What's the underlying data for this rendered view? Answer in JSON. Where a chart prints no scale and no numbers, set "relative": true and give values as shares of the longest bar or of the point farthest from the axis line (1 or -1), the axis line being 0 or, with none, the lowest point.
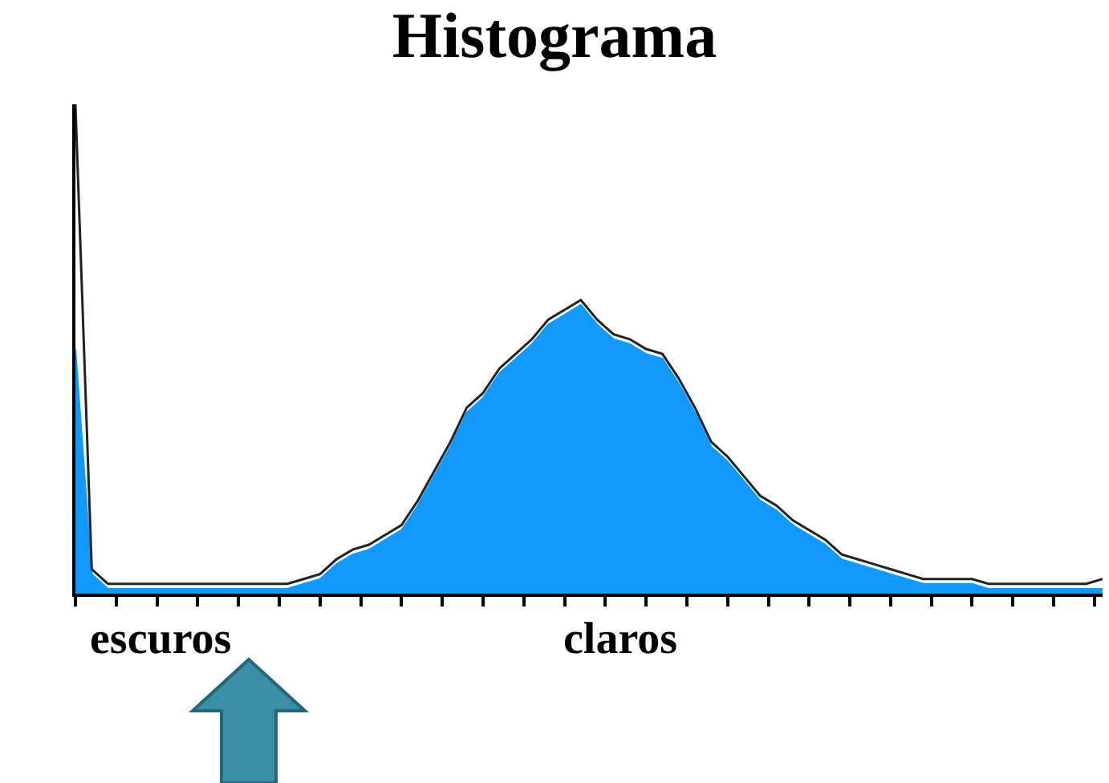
{
  "chart_data": {
    "type": "area",
    "title": "Histograma",
    "relative": true,
    "categories": [
      null,
      null,
      null,
      null,
      null,
      null,
      null,
      null,
      null,
      null,
      null,
      null,
      null,
      null,
      null,
      null,
      null,
      null,
      null,
      null,
      null,
      null,
      null,
      null,
      null,
      null,
      null,
      null,
      null,
      null,
      null,
      null,
      null,
      null,
      null,
      null,
      null,
      null,
      null,
      null,
      null,
      null,
      null,
      null,
      null,
      null,
      null,
      null,
      null,
      null,
      null,
      null,
      null,
      null,
      null,
      null,
      null,
      null,
      null,
      null,
      null,
      null,
      null,
      null
    ],
    "series": [
      {
        "color": "#1299fa",
        "values": [
          0.5,
          0.04,
          0.01,
          0.01,
          0.01,
          0.01,
          0.01,
          0.01,
          0.01,
          0.01,
          0.01,
          0.01,
          0.01,
          0.01,
          0.02,
          0.03,
          0.06,
          0.08,
          0.09,
          0.11,
          0.13,
          0.18,
          0.24,
          0.3,
          0.37,
          0.4,
          0.45,
          0.48,
          0.51,
          0.55,
          0.57,
          0.59,
          0.55,
          0.52,
          0.51,
          0.49,
          0.48,
          0.43,
          0.37,
          0.3,
          0.27,
          0.23,
          0.19,
          0.17,
          0.14,
          0.12,
          0.1,
          0.07,
          0.06,
          0.05,
          0.04,
          0.03,
          0.02,
          0.02,
          0.02,
          0.02,
          0.01,
          0.01,
          0.01,
          0.01,
          0.01,
          0.01,
          0.01,
          0.01
        ]
      },
      {
        "type": "line",
        "color": "#222222",
        "values": [
          1,
          0.05,
          0.02,
          0.02,
          0.02,
          0.02,
          0.02,
          0.02,
          0.02,
          0.02,
          0.02,
          0.02,
          0.02,
          0.02,
          0.03,
          0.04,
          0.07,
          0.09,
          0.1,
          0.12,
          0.14,
          0.19,
          0.25,
          0.31,
          0.38,
          0.41,
          0.46,
          0.49,
          0.52,
          0.56,
          0.58,
          0.6,
          0.56,
          0.53,
          0.52,
          0.5,
          0.49,
          0.44,
          0.38,
          0.31,
          0.28,
          0.24,
          0.2,
          0.18,
          0.15,
          0.13,
          0.11,
          0.08,
          0.07,
          0.06,
          0.05,
          0.04,
          0.03,
          0.03,
          0.03,
          0.03,
          0.02,
          0.02,
          0.02,
          0.02,
          0.02,
          0.02,
          0.02,
          0.03
        ]
      }
    ],
    "annotations": [
      "escuros",
      "claros"
    ]
  }
}
